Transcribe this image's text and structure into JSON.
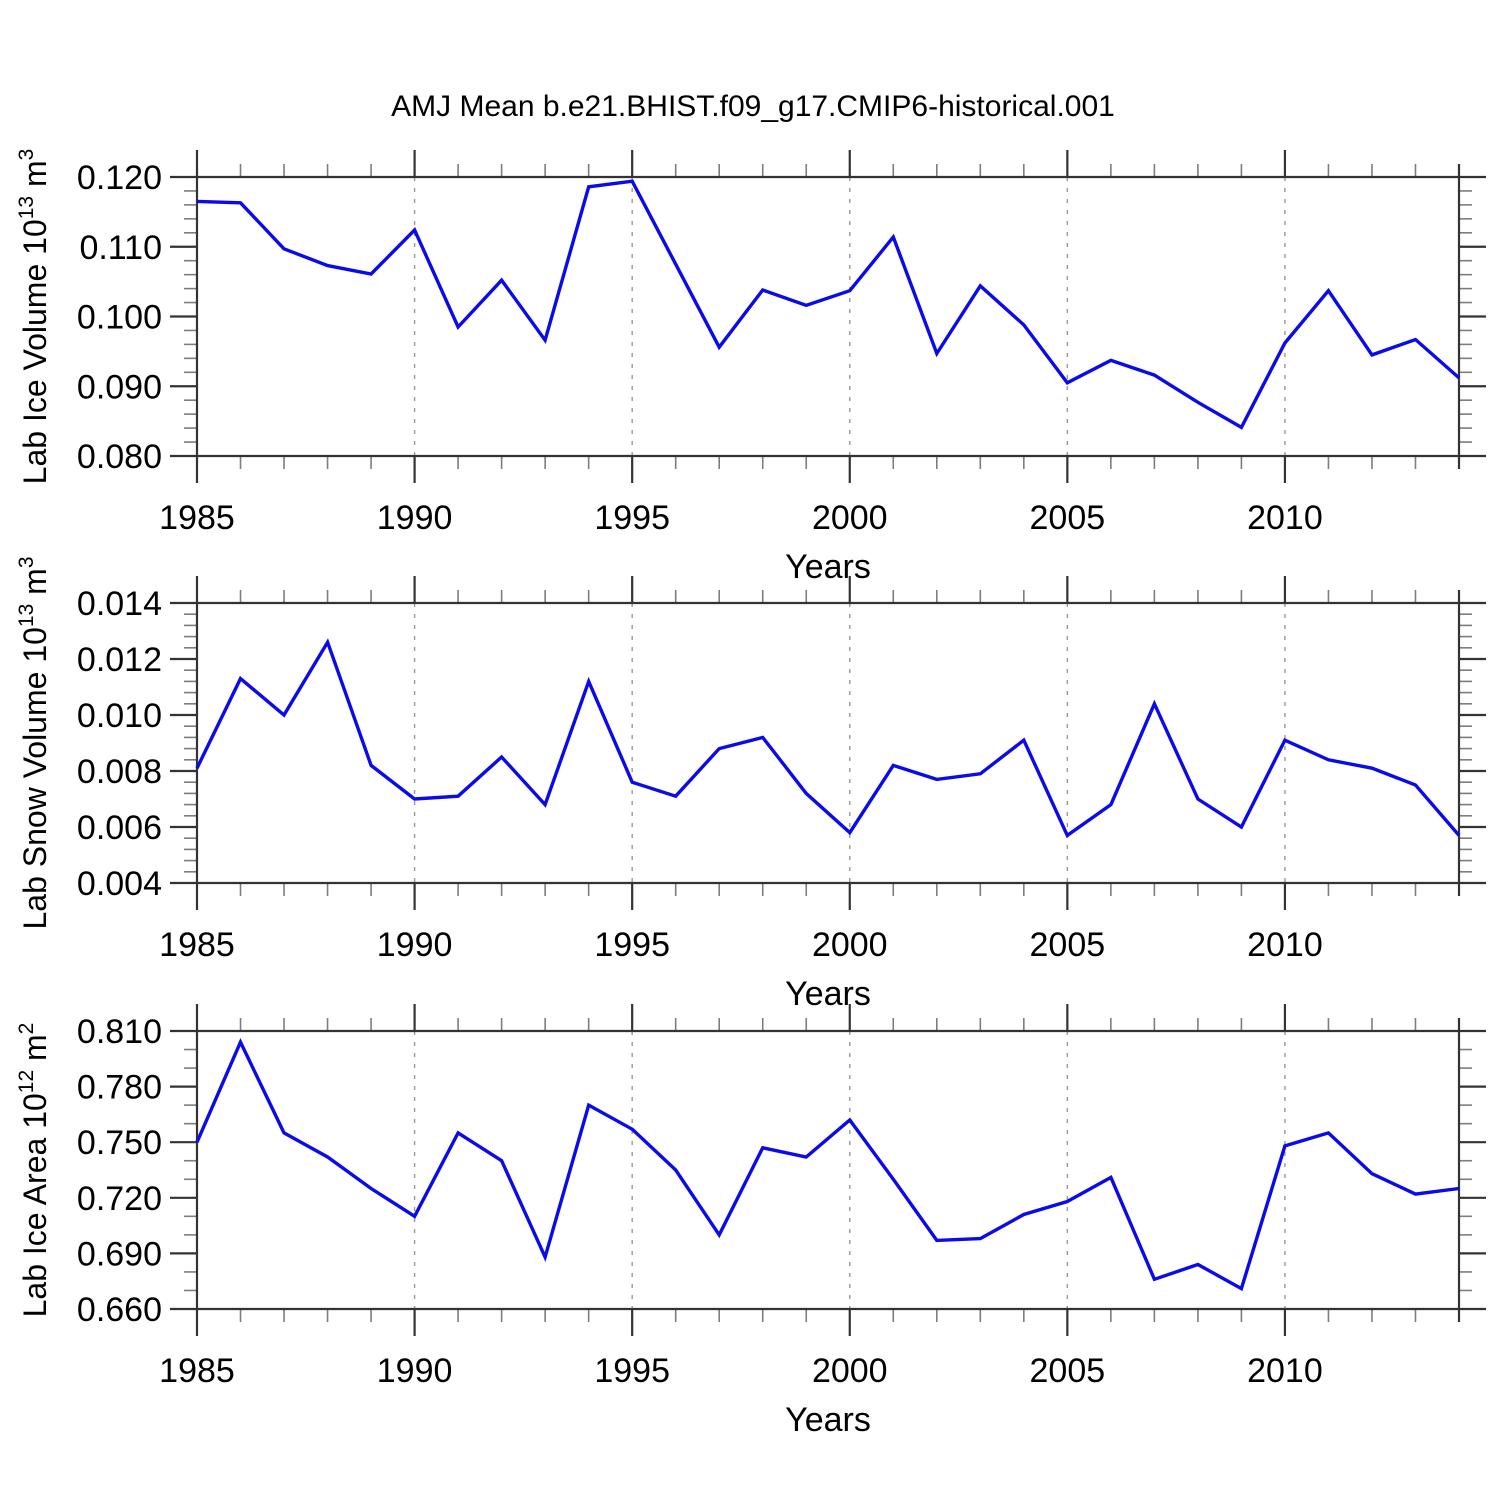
{
  "title": "AMJ Mean b.e21.BHIST.f09_g17.CMIP6-historical.001",
  "x_axis": {
    "label": "Years",
    "start": 1985,
    "end": 2014,
    "major_ticks": [
      1985,
      1990,
      1995,
      2000,
      2005,
      2010
    ],
    "tick_labels": [
      "1985",
      "1990",
      "1995",
      "2000",
      "2005",
      "2010"
    ],
    "gridlines": [
      1990,
      1995,
      2000,
      2005,
      2010
    ]
  },
  "colors": {
    "line": "#0a0aec",
    "frame": "#333333",
    "major_tick": "#333333",
    "minor_tick": "#7d7d7d",
    "grid": "#999999",
    "text": "#000000",
    "background": "#ffffff"
  },
  "chart_data": [
    {
      "type": "line",
      "name": "lab-ice-volume",
      "ylabel_text": "Lab Ice Volume 10^13 m^3",
      "ylabel_parts": [
        {
          "text": "Lab Ice Volume 10"
        },
        {
          "text": "13",
          "sup": true
        },
        {
          "text": " m"
        },
        {
          "text": "3",
          "sup": true
        }
      ],
      "xlabel": "Years",
      "ylim": [
        0.08,
        0.12
      ],
      "ytick_step": 0.01,
      "yminor_step": 0.002,
      "ytick_labels": [
        "0.080",
        "0.090",
        "0.100",
        "0.110",
        "0.120"
      ],
      "x": [
        1985,
        1986,
        1987,
        1988,
        1989,
        1990,
        1991,
        1992,
        1993,
        1994,
        1995,
        1996,
        1997,
        1998,
        1999,
        2000,
        2001,
        2002,
        2003,
        2004,
        2005,
        2006,
        2007,
        2008,
        2009,
        2010,
        2011,
        2012,
        2013,
        2014
      ],
      "values": [
        0.1165,
        0.1163,
        0.1097,
        0.1073,
        0.1061,
        0.1124,
        0.0985,
        0.1052,
        0.0966,
        0.1186,
        0.1194,
        0.1075,
        0.0956,
        0.1038,
        0.1016,
        0.1037,
        0.1114,
        0.0947,
        0.1044,
        0.0988,
        0.0905,
        0.0937,
        0.0916,
        0.0877,
        0.0841,
        0.0962,
        0.1037,
        0.0945,
        0.0967,
        0.0912
      ]
    },
    {
      "type": "line",
      "name": "lab-snow-volume",
      "ylabel_text": "Lab Snow Volume 10^13 m^3",
      "ylabel_parts": [
        {
          "text": "Lab Snow Volume 10"
        },
        {
          "text": "13",
          "sup": true
        },
        {
          "text": " m"
        },
        {
          "text": "3",
          "sup": true
        }
      ],
      "xlabel": "Years",
      "ylim": [
        0.004,
        0.014
      ],
      "ytick_step": 0.002,
      "yminor_step": 0.0004,
      "ytick_labels": [
        "0.004",
        "0.006",
        "0.008",
        "0.010",
        "0.012",
        "0.014"
      ],
      "x": [
        1985,
        1986,
        1987,
        1988,
        1989,
        1990,
        1991,
        1992,
        1993,
        1994,
        1995,
        1996,
        1997,
        1998,
        1999,
        2000,
        2001,
        2002,
        2003,
        2004,
        2005,
        2006,
        2007,
        2008,
        2009,
        2010,
        2011,
        2012,
        2013,
        2014
      ],
      "values": [
        0.0081,
        0.0113,
        0.01,
        0.0126,
        0.0082,
        0.007,
        0.0071,
        0.0085,
        0.0068,
        0.0112,
        0.0076,
        0.0071,
        0.0088,
        0.0092,
        0.0072,
        0.0058,
        0.0082,
        0.0077,
        0.0079,
        0.0091,
        0.0057,
        0.0068,
        0.0104,
        0.007,
        0.006,
        0.0091,
        0.0084,
        0.0081,
        0.0075,
        0.0057
      ]
    },
    {
      "type": "line",
      "name": "lab-ice-area",
      "ylabel_text": "Lab Ice Area 10^12 m^2",
      "ylabel_parts": [
        {
          "text": "Lab Ice Area 10"
        },
        {
          "text": "12",
          "sup": true
        },
        {
          "text": " m"
        },
        {
          "text": "2",
          "sup": true
        }
      ],
      "xlabel": "Years",
      "ylim": [
        0.66,
        0.81
      ],
      "ytick_step": 0.03,
      "yminor_step": 0.01,
      "ytick_labels": [
        "0.660",
        "0.690",
        "0.720",
        "0.750",
        "0.780",
        "0.810"
      ],
      "x": [
        1985,
        1986,
        1987,
        1988,
        1989,
        1990,
        1991,
        1992,
        1993,
        1994,
        1995,
        1996,
        1997,
        1998,
        1999,
        2000,
        2001,
        2002,
        2003,
        2004,
        2005,
        2006,
        2007,
        2008,
        2009,
        2010,
        2011,
        2012,
        2013,
        2014
      ],
      "values": [
        0.75,
        0.804,
        0.755,
        0.742,
        0.725,
        0.71,
        0.755,
        0.74,
        0.688,
        0.77,
        0.757,
        0.735,
        0.7,
        0.747,
        0.742,
        0.762,
        0.73,
        0.697,
        0.698,
        0.711,
        0.718,
        0.731,
        0.676,
        0.684,
        0.671,
        0.748,
        0.755,
        0.733,
        0.722,
        0.725
      ]
    }
  ]
}
